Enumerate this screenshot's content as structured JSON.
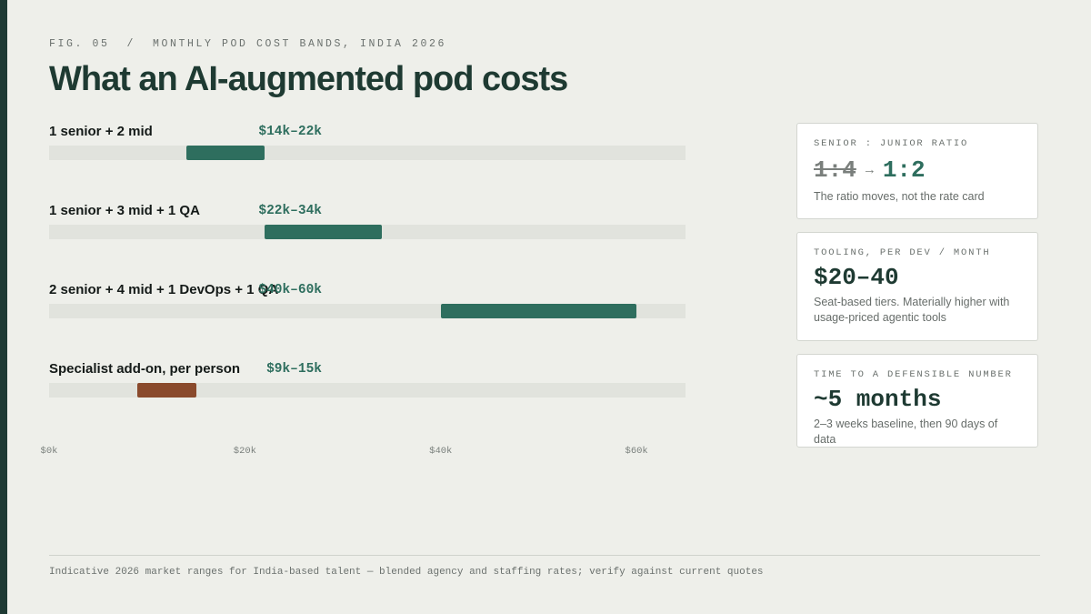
{
  "eyebrow": "FIG. 05  /  MONTHLY POD COST BANDS, INDIA 2026",
  "title": "What an AI-augmented pod costs",
  "colors": {
    "primary": "#2e6e5e",
    "specialist": "#8a4a2c",
    "track": "#e1e3dd",
    "stripe": "#1e3a34"
  },
  "chart_data": {
    "type": "bar",
    "orientation": "horizontal-range",
    "categories": [
      "1 senior + 2 mid",
      "1 senior + 3 mid + 1 QA",
      "2 senior + 4 mid + 1 DevOps + 1 QA",
      "Specialist add-on, per person"
    ],
    "range_labels": [
      "$14k–22k",
      "$22k–34k",
      "$40k–60k",
      "$9k–15k"
    ],
    "series": [
      {
        "low": 14,
        "high": 22,
        "color": "#2e6e5e"
      },
      {
        "low": 22,
        "high": 34,
        "color": "#2e6e5e"
      },
      {
        "low": 40,
        "high": 60,
        "color": "#2e6e5e"
      },
      {
        "low": 9,
        "high": 15,
        "color": "#8a4a2c"
      }
    ],
    "xlim": [
      0,
      65
    ],
    "xticks": [
      0,
      20,
      40,
      60
    ],
    "xtick_labels": [
      "$0k",
      "$20k",
      "$40k",
      "$60k"
    ],
    "unit": "k USD per month",
    "grid": false
  },
  "cards": [
    {
      "label": "SENIOR : JUNIOR RATIO",
      "ratio_old": "1:4",
      "arrow": "→",
      "ratio_new": "1:2",
      "note": "The ratio moves, not the rate card"
    },
    {
      "label": "TOOLING, PER DEV / MONTH",
      "value": "$20–40",
      "note": "Seat-based tiers. Materially higher with usage-priced agentic tools"
    },
    {
      "label": "TIME TO A DEFENSIBLE NUMBER",
      "value": "~5 months",
      "note": "2–3 weeks baseline, then 90 days of data"
    }
  ],
  "footnote": "Indicative 2026 market ranges for India-based talent — blended agency and staffing rates; verify against current quotes"
}
